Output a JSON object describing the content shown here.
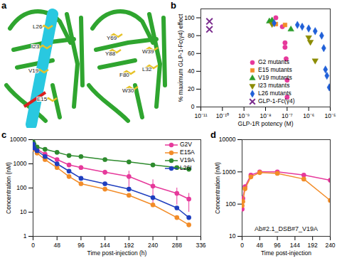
{
  "chart_data": [
    {
      "panel": "a",
      "type": "structure",
      "annotations": [
        "L26",
        "I23",
        "V19",
        "E15",
        "Y69",
        "Y88",
        "W39",
        "L32",
        "F80",
        "W30"
      ]
    },
    {
      "panel": "b",
      "type": "scatter",
      "log": "x",
      "legend": "center",
      "x_label": "GLP-1R potency (M)",
      "y_label": "% maximum GLP-1-Fc(γ4) effect",
      "xlim": [
        1e-11,
        1e-05
      ],
      "xticks": [
        {
          "value": 1e-11,
          "label": "10⁻¹¹"
        },
        {
          "value": 1e-10,
          "label": "10⁻¹⁰"
        },
        {
          "value": 1e-09,
          "label": "10⁻⁹"
        },
        {
          "value": 1e-08,
          "label": "10⁻⁸"
        },
        {
          "value": 1e-07,
          "label": "10⁻⁷"
        },
        {
          "value": 1e-06,
          "label": "10⁻⁶"
        },
        {
          "value": 1e-05,
          "label": "10⁻⁵"
        }
      ],
      "ylim": [
        0,
        110
      ],
      "yticks": [
        0,
        20,
        40,
        60,
        80,
        100
      ],
      "series": [
        {
          "name": "G2 mutants",
          "color": "#e6399b",
          "marker": "circle",
          "x": [
            3e-08,
            6e-08,
            8e-08,
            8e-08,
            9e-08,
            1e-07,
            1e-07
          ],
          "values": [
            100,
            90,
            72,
            67,
            54,
            30,
            11
          ]
        },
        {
          "name": "E15 mutants",
          "color": "#f28c28",
          "marker": "square",
          "x": [
            3e-08,
            8e-08
          ],
          "values": [
            93,
            92
          ]
        },
        {
          "name": "V19 mutants",
          "color": "#2a9d2a",
          "marker": "triangle",
          "x": [
            1.5e-08,
            2e-08,
            1.5e-07
          ],
          "values": [
            96,
            97,
            87
          ]
        },
        {
          "name": "I23 mutants",
          "color": "#8b8b00",
          "marker": "triangle-down",
          "x": [
            2e-08,
            1e-06,
            1.2e-06,
            2e-06
          ],
          "values": [
            93,
            78,
            73,
            52
          ]
        },
        {
          "name": "L26 mutants",
          "color": "#2060d8",
          "marker": "diamond",
          "x": [
            2.5e-08,
            3e-07,
            5e-07,
            1e-06,
            2e-06,
            4e-06,
            5e-06,
            6e-06,
            7e-06,
            9e-06
          ],
          "values": [
            94,
            92,
            90,
            88,
            85,
            80,
            66,
            42,
            35,
            22
          ]
        },
        {
          "name": "GLP-1-Fc(γ4)",
          "color": "#7b2d8e",
          "marker": "x",
          "x": [
            2.5e-11,
            2.5e-11
          ],
          "values": [
            96,
            87
          ]
        }
      ]
    },
    {
      "panel": "c",
      "type": "line",
      "log": "y",
      "legend": "top-right",
      "x_label": "Time post-injection (h)",
      "y_label": "Concentration (nM)",
      "x": [
        0.25,
        2,
        8,
        24,
        48,
        72,
        96,
        144,
        192,
        240,
        288,
        312
      ],
      "xlim": [
        0,
        336
      ],
      "xticks": [
        0,
        48,
        96,
        144,
        192,
        240,
        288,
        336
      ],
      "ylim": [
        1,
        10000
      ],
      "yticks": [
        1,
        10,
        100,
        1000,
        10000
      ],
      "series": [
        {
          "name": "G2V",
          "color": "#e6399b",
          "marker": "circle",
          "values": [
            7000,
            5500,
            4000,
            2500,
            1500,
            900,
            700,
            450,
            300,
            120,
            60,
            35
          ],
          "error": [
            0,
            0,
            0,
            0,
            200,
            150,
            150,
            100,
            200,
            100,
            40,
            25
          ]
        },
        {
          "name": "E15A",
          "color": "#f28c28",
          "marker": "circle",
          "values": [
            6000,
            4000,
            2800,
            1500,
            700,
            300,
            150,
            90,
            50,
            20,
            6,
            3
          ]
        },
        {
          "name": "V19A",
          "color": "#2e8b2e",
          "marker": "circle",
          "values": [
            8000,
            6500,
            5000,
            4000,
            3000,
            2200,
            2000,
            1500,
            1200,
            900,
            700,
            600
          ]
        },
        {
          "name": "L26I",
          "color": "#1f3fbf",
          "marker": "circle",
          "values": [
            6500,
            4500,
            3500,
            2000,
            1000,
            500,
            250,
            150,
            90,
            40,
            15,
            6
          ]
        }
      ]
    },
    {
      "panel": "d",
      "type": "line",
      "log": "y",
      "title": "Ab#2.1_DSB#7_V19A",
      "x_label": "Time post-injection",
      "y_label": "Concentration (nM)",
      "x": [
        0.25,
        2,
        8,
        24,
        48,
        96,
        168,
        240
      ],
      "xlim": [
        0,
        240
      ],
      "xticks": [
        0,
        48,
        96,
        144,
        192,
        240
      ],
      "ylim": [
        10,
        10000
      ],
      "yticks": [
        10,
        100,
        1000,
        10000
      ],
      "series": [
        {
          "color": "#e6399b",
          "marker": "circle",
          "values": [
            70,
            150,
            350,
            800,
            1000,
            1000,
            800,
            550
          ]
        },
        {
          "color": "#f28c28",
          "marker": "circle",
          "values": [
            90,
            120,
            300,
            700,
            950,
            900,
            600,
            130
          ]
        }
      ]
    }
  ]
}
